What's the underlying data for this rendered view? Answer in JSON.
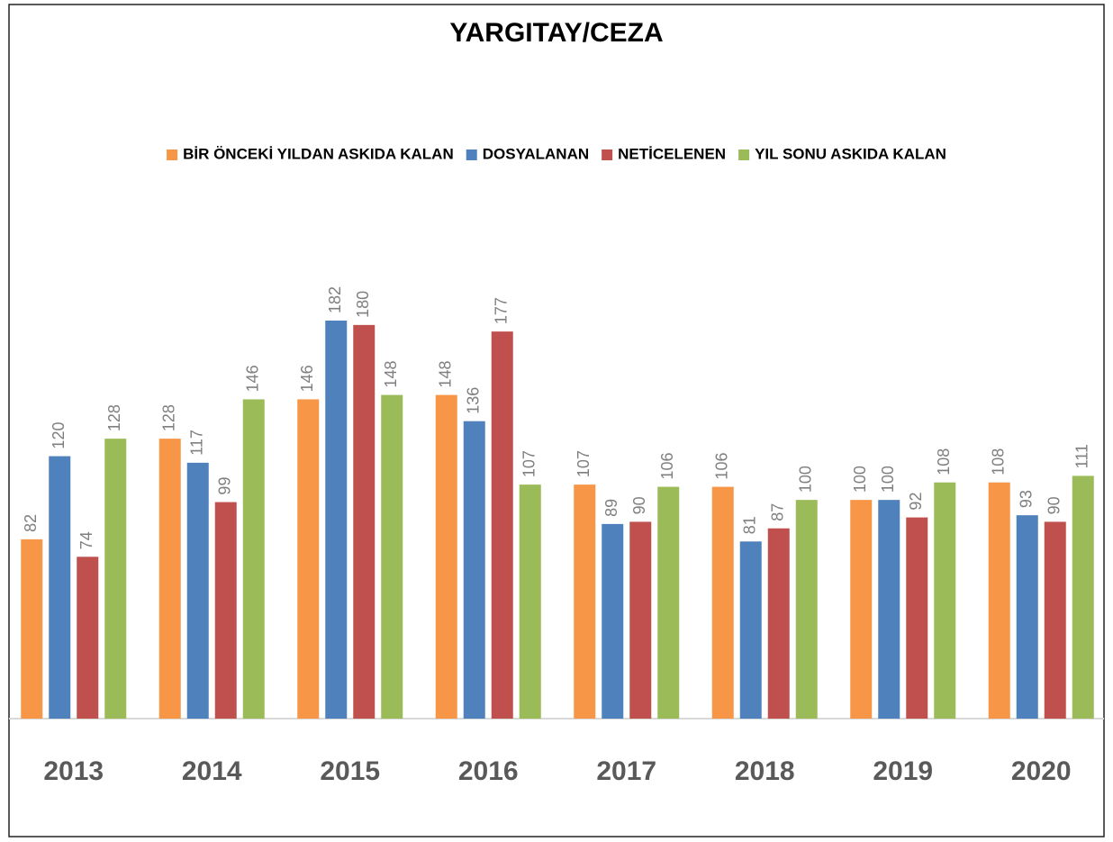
{
  "chart_data": {
    "type": "bar",
    "title": "YARGITAY/CEZA",
    "categories": [
      "2013",
      "2014",
      "2015",
      "2016",
      "2017",
      "2018",
      "2019",
      "2020"
    ],
    "series": [
      {
        "name": "BİR ÖNCEKİ YILDAN ASKIDA KALAN",
        "color": "#f79646",
        "values": [
          82,
          128,
          146,
          148,
          107,
          106,
          100,
          108
        ]
      },
      {
        "name": "DOSYALANAN",
        "color": "#4f81bd",
        "values": [
          120,
          117,
          182,
          136,
          89,
          81,
          100,
          93
        ]
      },
      {
        "name": "NETİCELENEN",
        "color": "#c0504d",
        "values": [
          74,
          99,
          180,
          177,
          90,
          87,
          92,
          90
        ]
      },
      {
        "name": "YIL SONU ASKIDA KALAN",
        "color": "#9bbb59",
        "values": [
          128,
          146,
          148,
          107,
          106,
          100,
          108,
          111
        ]
      }
    ],
    "legend": "top"
  }
}
